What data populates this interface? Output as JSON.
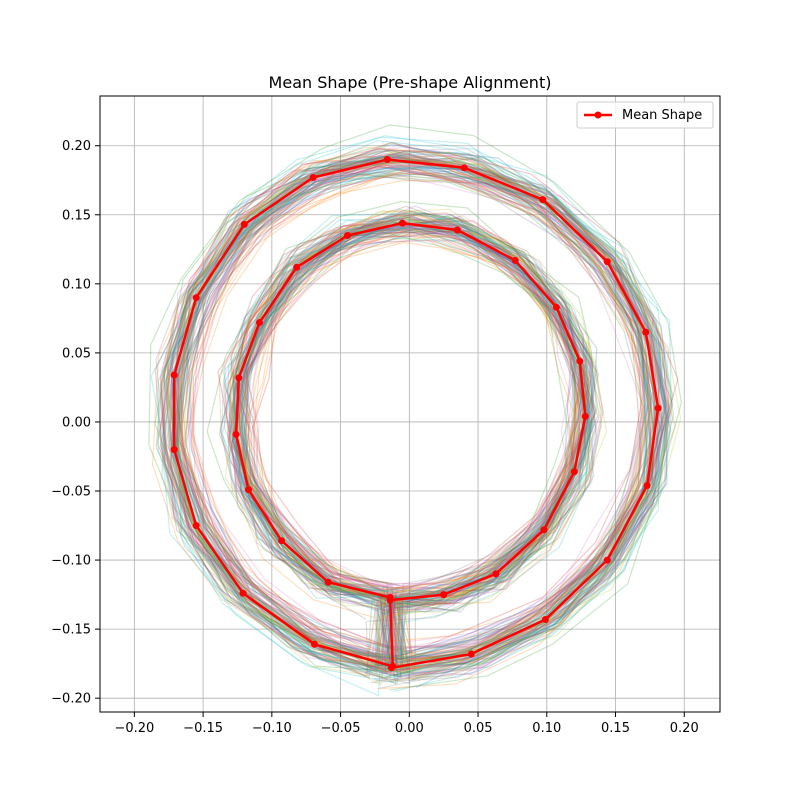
{
  "chart_data": {
    "type": "line",
    "title": "Mean Shape (Pre-shape Alignment)",
    "xlabel": "",
    "ylabel": "",
    "xlim": [
      -0.225,
      0.226
    ],
    "ylim": [
      -0.21,
      0.236
    ],
    "xticks": [
      -0.2,
      -0.15,
      -0.1,
      -0.05,
      0.0,
      0.05,
      0.1,
      0.15,
      0.2
    ],
    "xtick_labels": [
      "−0.20",
      "−0.15",
      "−0.10",
      "−0.05",
      "0.00",
      "0.05",
      "0.10",
      "0.15",
      "0.20"
    ],
    "yticks": [
      -0.2,
      -0.15,
      -0.1,
      -0.05,
      0.0,
      0.05,
      0.1,
      0.15,
      0.2
    ],
    "ytick_labels": [
      "−0.20",
      "−0.15",
      "−0.10",
      "−0.05",
      "0.00",
      "0.05",
      "0.10",
      "0.15",
      "0.20"
    ],
    "grid": true,
    "legend": {
      "position": "top-right",
      "entries": [
        "Mean Shape"
      ]
    },
    "mean_shape": {
      "name": "Mean Shape",
      "color": "#ff0000",
      "points": [
        [
          -0.013,
          -0.178
        ],
        [
          0.045,
          -0.168
        ],
        [
          0.099,
          -0.143
        ],
        [
          0.144,
          -0.1
        ],
        [
          0.173,
          -0.046
        ],
        [
          0.181,
          0.01
        ],
        [
          0.172,
          0.065
        ],
        [
          0.144,
          0.116
        ],
        [
          0.097,
          0.161
        ],
        [
          0.04,
          0.184
        ],
        [
          -0.016,
          0.19
        ],
        [
          -0.07,
          0.177
        ],
        [
          -0.12,
          0.143
        ],
        [
          -0.155,
          0.09
        ],
        [
          -0.171,
          0.034
        ],
        [
          -0.171,
          -0.02
        ],
        [
          -0.155,
          -0.075
        ],
        [
          -0.121,
          -0.124
        ],
        [
          -0.069,
          -0.161
        ],
        [
          -0.012,
          -0.177
        ],
        [
          -0.014,
          -0.129
        ],
        [
          0.025,
          -0.125
        ],
        [
          0.063,
          -0.11
        ],
        [
          0.098,
          -0.078
        ],
        [
          0.12,
          -0.036
        ],
        [
          0.128,
          0.004
        ],
        [
          0.124,
          0.044
        ],
        [
          0.107,
          0.083
        ],
        [
          0.077,
          0.117
        ],
        [
          0.035,
          0.139
        ],
        [
          -0.005,
          0.144
        ],
        [
          -0.045,
          0.135
        ],
        [
          -0.082,
          0.112
        ],
        [
          -0.109,
          0.072
        ],
        [
          -0.124,
          0.032
        ],
        [
          -0.126,
          -0.009
        ],
        [
          -0.117,
          -0.049
        ],
        [
          -0.093,
          -0.086
        ],
        [
          -0.059,
          -0.116
        ],
        [
          -0.014,
          -0.127
        ]
      ]
    },
    "aligned_shapes": {
      "count": 100,
      "colors": [
        "#1f77b4",
        "#ff7f0e",
        "#2ca02c",
        "#d62728",
        "#9467bd",
        "#8c564b",
        "#e377c2",
        "#7f7f7f",
        "#bcbd22",
        "#17becf"
      ]
    }
  }
}
